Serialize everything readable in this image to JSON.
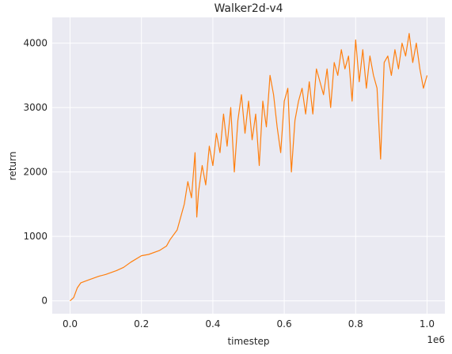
{
  "chart_data": {
    "type": "line",
    "title": "Walker2d-v4",
    "xlabel": "timestep",
    "ylabel": "return",
    "x_offset_label": "1e6",
    "x_scale": 1000000,
    "xlim": [
      -50000,
      1050000
    ],
    "ylim": [
      -200,
      4400
    ],
    "xticks": [
      0,
      200000,
      400000,
      600000,
      800000,
      1000000
    ],
    "xtick_labels": [
      "0.0",
      "0.2",
      "0.4",
      "0.6",
      "0.8",
      "1.0"
    ],
    "yticks": [
      0,
      1000,
      2000,
      3000,
      4000
    ],
    "ytick_labels": [
      "0",
      "1000",
      "2000",
      "3000",
      "4000"
    ],
    "grid": true,
    "background": "#eaeaf2",
    "series": [
      {
        "color": "#ff7f0e",
        "x": [
          0,
          10000,
          20000,
          30000,
          50000,
          80000,
          100000,
          130000,
          150000,
          170000,
          200000,
          220000,
          250000,
          270000,
          280000,
          300000,
          310000,
          320000,
          330000,
          340000,
          350000,
          355000,
          360000,
          370000,
          380000,
          390000,
          400000,
          410000,
          420000,
          430000,
          440000,
          450000,
          460000,
          470000,
          480000,
          490000,
          500000,
          510000,
          520000,
          530000,
          540000,
          550000,
          560000,
          570000,
          580000,
          590000,
          600000,
          610000,
          620000,
          630000,
          640000,
          650000,
          660000,
          670000,
          680000,
          690000,
          700000,
          710000,
          720000,
          730000,
          740000,
          750000,
          760000,
          770000,
          780000,
          790000,
          800000,
          810000,
          820000,
          830000,
          840000,
          850000,
          860000,
          870000,
          880000,
          890000,
          900000,
          910000,
          920000,
          930000,
          940000,
          950000,
          960000,
          970000,
          980000,
          990000,
          1000000
        ],
        "y": [
          0,
          50,
          200,
          280,
          320,
          380,
          410,
          470,
          520,
          600,
          700,
          720,
          780,
          850,
          950,
          1100,
          1300,
          1500,
          1850,
          1600,
          2300,
          1300,
          1700,
          2100,
          1800,
          2400,
          2100,
          2600,
          2300,
          2900,
          2400,
          3000,
          2000,
          2800,
          3200,
          2600,
          3100,
          2500,
          2900,
          2100,
          3100,
          2700,
          3500,
          3200,
          2700,
          2300,
          3100,
          3300,
          2000,
          2800,
          3100,
          3300,
          2900,
          3400,
          2900,
          3600,
          3400,
          3200,
          3600,
          3000,
          3700,
          3500,
          3900,
          3600,
          3800,
          3100,
          4050,
          3400,
          3900,
          3300,
          3800,
          3500,
          3300,
          2200,
          3700,
          3800,
          3500,
          3900,
          3600,
          4000,
          3800,
          4150,
          3700,
          4000,
          3600,
          3300,
          3500
        ]
      }
    ]
  }
}
